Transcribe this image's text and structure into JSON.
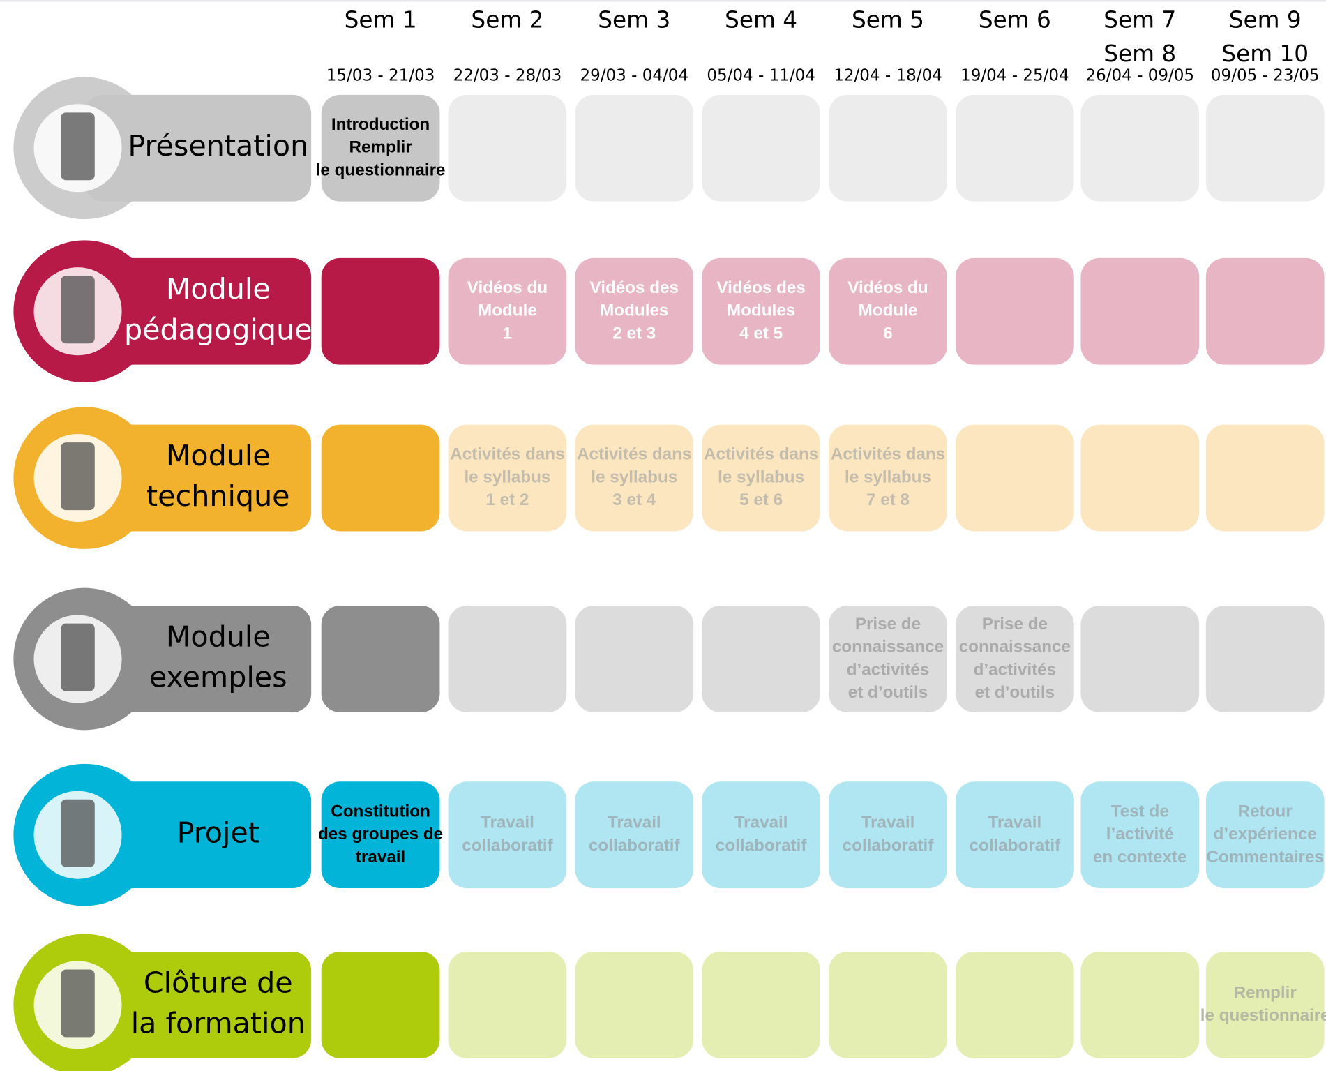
{
  "columns": [
    {
      "weeks": [
        "Sem 1"
      ],
      "dates": "15/03 - 21/03"
    },
    {
      "weeks": [
        "Sem 2"
      ],
      "dates": "22/03 - 28/03"
    },
    {
      "weeks": [
        "Sem 3"
      ],
      "dates": "29/03 - 04/04"
    },
    {
      "weeks": [
        "Sem 4"
      ],
      "dates": "05/04 - 11/04"
    },
    {
      "weeks": [
        "Sem 5"
      ],
      "dates": "12/04 - 18/04"
    },
    {
      "weeks": [
        "Sem 6"
      ],
      "dates": "19/04 - 25/04"
    },
    {
      "weeks": [
        "Sem 7",
        "Sem 8"
      ],
      "dates": "26/04 - 09/05"
    },
    {
      "weeks": [
        "Sem 9",
        "Sem 10"
      ],
      "dates": "09/05 - 23/05"
    }
  ],
  "rows": [
    {
      "label": [
        "Présentation"
      ],
      "color": "#c6c6c6",
      "light_color": "#ececec",
      "label_text_color": "#000000",
      "cell_text_color": "#cfcfcf",
      "cells": [
        [
          "Introduction",
          "Remplir",
          "le questionnaire"
        ],
        null,
        null,
        null,
        null,
        null,
        null,
        null
      ]
    },
    {
      "label": [
        "Module",
        "pédagogique"
      ],
      "color": "#b81a47",
      "light_color": "#e8b5c5",
      "label_text_color": "#ffffff",
      "cell_text_color": "#ffffff",
      "cells": [
        null,
        [
          "Vidéos du",
          "Module",
          "1"
        ],
        [
          "Vidéos des",
          "Modules",
          "2 et 3"
        ],
        [
          "Vidéos des",
          "Modules",
          "4 et 5"
        ],
        [
          "Vidéos du",
          "Module",
          "6"
        ],
        null,
        null,
        null
      ]
    },
    {
      "label": [
        "Module",
        "technique"
      ],
      "color": "#f3b22e",
      "light_color": "#fbe6c0",
      "label_text_color": "#000000",
      "cell_text_color": "#c3bcac",
      "cells": [
        null,
        [
          "Activités dans",
          "le syllabus",
          "1 et 2"
        ],
        [
          "Activités dans",
          "le syllabus",
          "3 et 4"
        ],
        [
          "Activités dans",
          "le syllabus",
          "5 et 6"
        ],
        [
          "Activités dans",
          "le syllabus",
          "7 et 8"
        ],
        null,
        null,
        null
      ]
    },
    {
      "label": [
        "Module",
        "exemples"
      ],
      "color": "#8e8e8e",
      "light_color": "#dcdcdc",
      "label_text_color": "#000000",
      "cell_text_color": "#ababab",
      "cells": [
        null,
        null,
        null,
        null,
        [
          "Prise de",
          "connaissance",
          "d’activités",
          "et d’outils"
        ],
        [
          "Prise de",
          "connaissance",
          "d’activités",
          "et d’outils"
        ],
        null,
        null
      ]
    },
    {
      "label": [
        "Projet"
      ],
      "color": "#02b4d7",
      "light_color": "#afe6f2",
      "label_text_color": "#000000",
      "cell_text_color": "#9fb5bb",
      "cells": [
        [
          "Constitution",
          "des groupes de",
          "travail"
        ],
        [
          "Travail",
          "collaboratif"
        ],
        [
          "Travail",
          "collaboratif"
        ],
        [
          "Travail",
          "collaboratif"
        ],
        [
          "Travail",
          "collaboratif"
        ],
        [
          "Travail",
          "collaboratif"
        ],
        [
          "Test de",
          "l’activité",
          "en contexte"
        ],
        [
          "Retour",
          "d’expérience",
          "Commentaires"
        ]
      ]
    },
    {
      "label": [
        "Clôture de",
        "la formation"
      ],
      "color": "#aecc0b",
      "light_color": "#e4edb2",
      "label_text_color": "#000000",
      "cell_text_color": "#b5b8a3",
      "cells": [
        null,
        null,
        null,
        null,
        null,
        null,
        null,
        [
          "Remplir",
          "le questionnaire"
        ]
      ]
    }
  ]
}
